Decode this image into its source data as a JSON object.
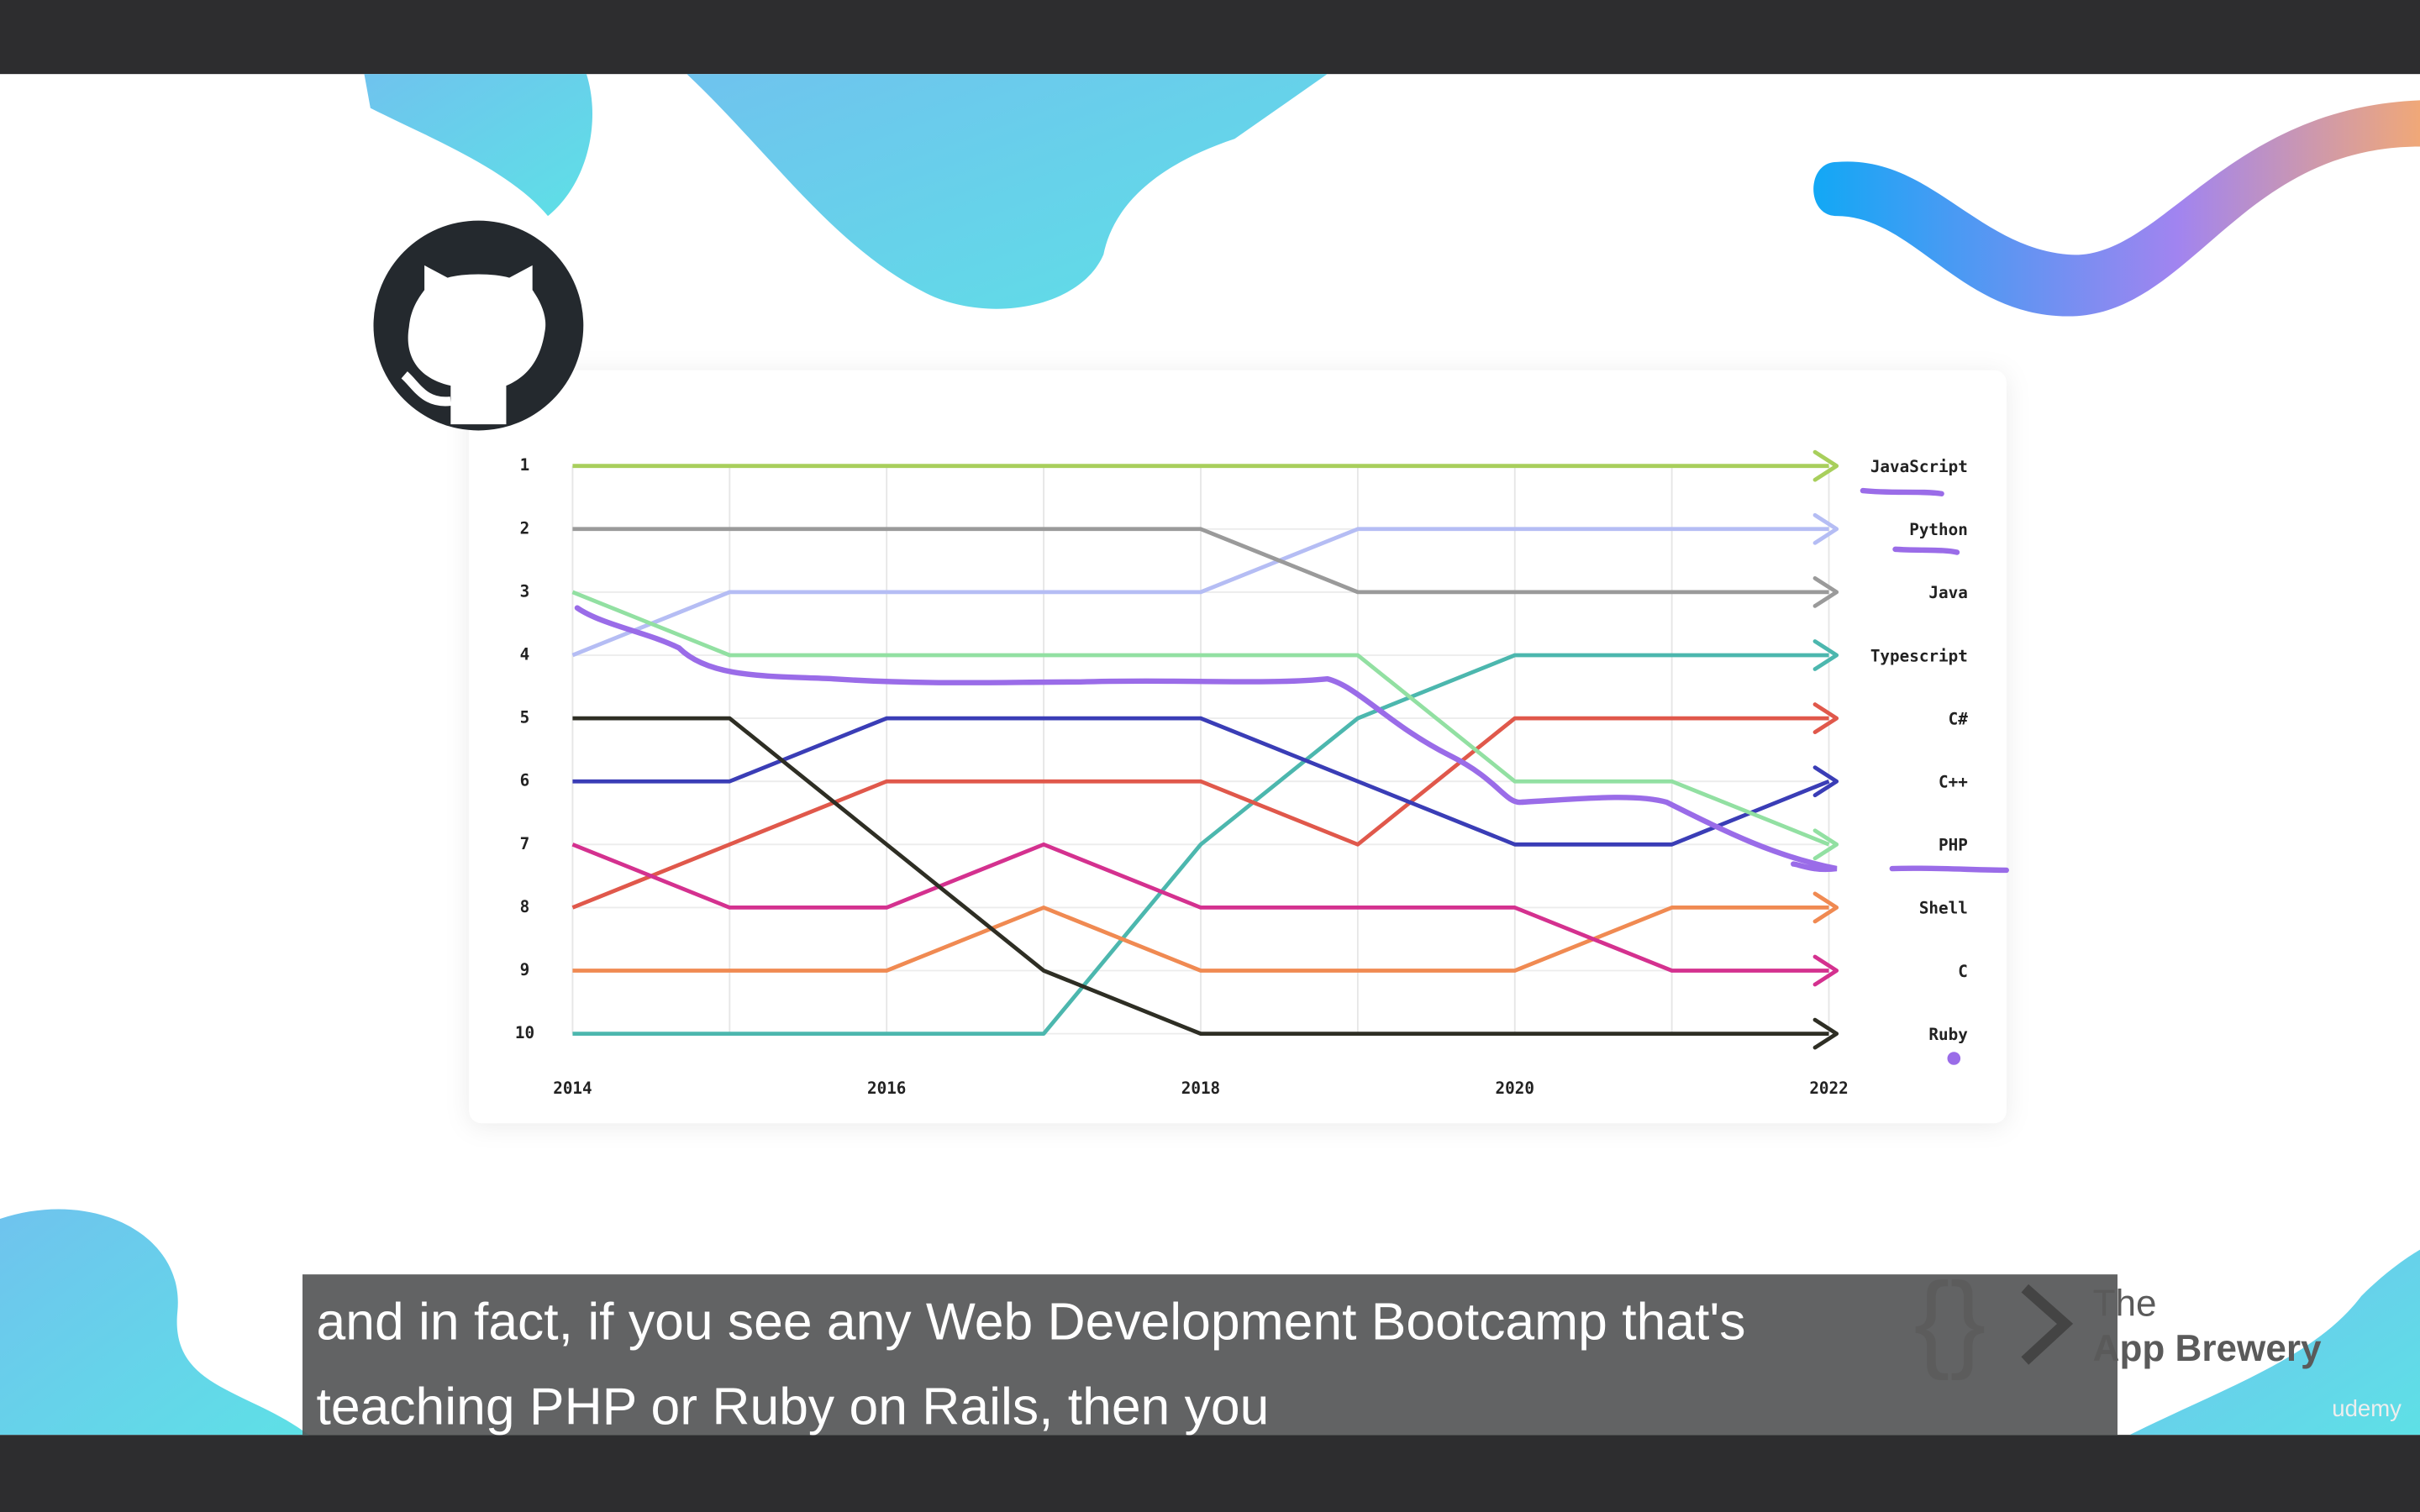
{
  "chart_data": {
    "type": "line",
    "x": [
      2014,
      2015,
      2016,
      2017,
      2018,
      2019,
      2020,
      2021,
      2022
    ],
    "xlim": [
      2014,
      2022
    ],
    "xticks": [
      2014,
      2016,
      2018,
      2020,
      2022
    ],
    "ylim": [
      10,
      1
    ],
    "yticks": [
      1,
      2,
      3,
      4,
      5,
      6,
      7,
      8,
      9,
      10
    ],
    "grid": true,
    "series": [
      {
        "name": "JavaScript",
        "color": "#a8cf5c",
        "values": [
          1,
          1,
          1,
          1,
          1,
          1,
          1,
          1,
          1
        ]
      },
      {
        "name": "Python",
        "color": "#b5bdf4",
        "values": [
          4,
          3,
          3,
          3,
          3,
          2,
          2,
          2,
          2
        ]
      },
      {
        "name": "Java",
        "color": "#9a9a9a",
        "values": [
          2,
          2,
          2,
          2,
          2,
          3,
          3,
          3,
          3
        ]
      },
      {
        "name": "Typescript",
        "color": "#4cb7ae",
        "values": [
          10,
          10,
          10,
          10,
          7,
          5,
          4,
          4,
          4
        ]
      },
      {
        "name": "C#",
        "color": "#e0584b",
        "values": [
          8,
          7,
          6,
          6,
          6,
          7,
          5,
          5,
          5
        ]
      },
      {
        "name": "C++",
        "color": "#3a3db6",
        "values": [
          6,
          6,
          5,
          5,
          5,
          6,
          7,
          7,
          6
        ]
      },
      {
        "name": "PHP",
        "color": "#92e0a2",
        "values": [
          3,
          4,
          4,
          4,
          4,
          4,
          6,
          6,
          7
        ]
      },
      {
        "name": "Shell",
        "color": "#f08a52",
        "values": [
          9,
          9,
          9,
          8,
          9,
          9,
          9,
          8,
          8
        ]
      },
      {
        "name": "C",
        "color": "#d4318f",
        "values": [
          7,
          8,
          8,
          7,
          8,
          8,
          8,
          9,
          9
        ]
      },
      {
        "name": "Ruby",
        "color": "#2e2e24",
        "values": [
          5,
          5,
          7,
          9,
          10,
          10,
          10,
          10,
          10
        ]
      }
    ]
  },
  "caption": {
    "lines": [
      "and in fact, if you see any Web Development Bootcamp that's",
      "teaching PHP or Ruby on Rails, then you"
    ]
  },
  "brand": {
    "the": "The",
    "name": "App Brewery",
    "platform": "udemy"
  }
}
